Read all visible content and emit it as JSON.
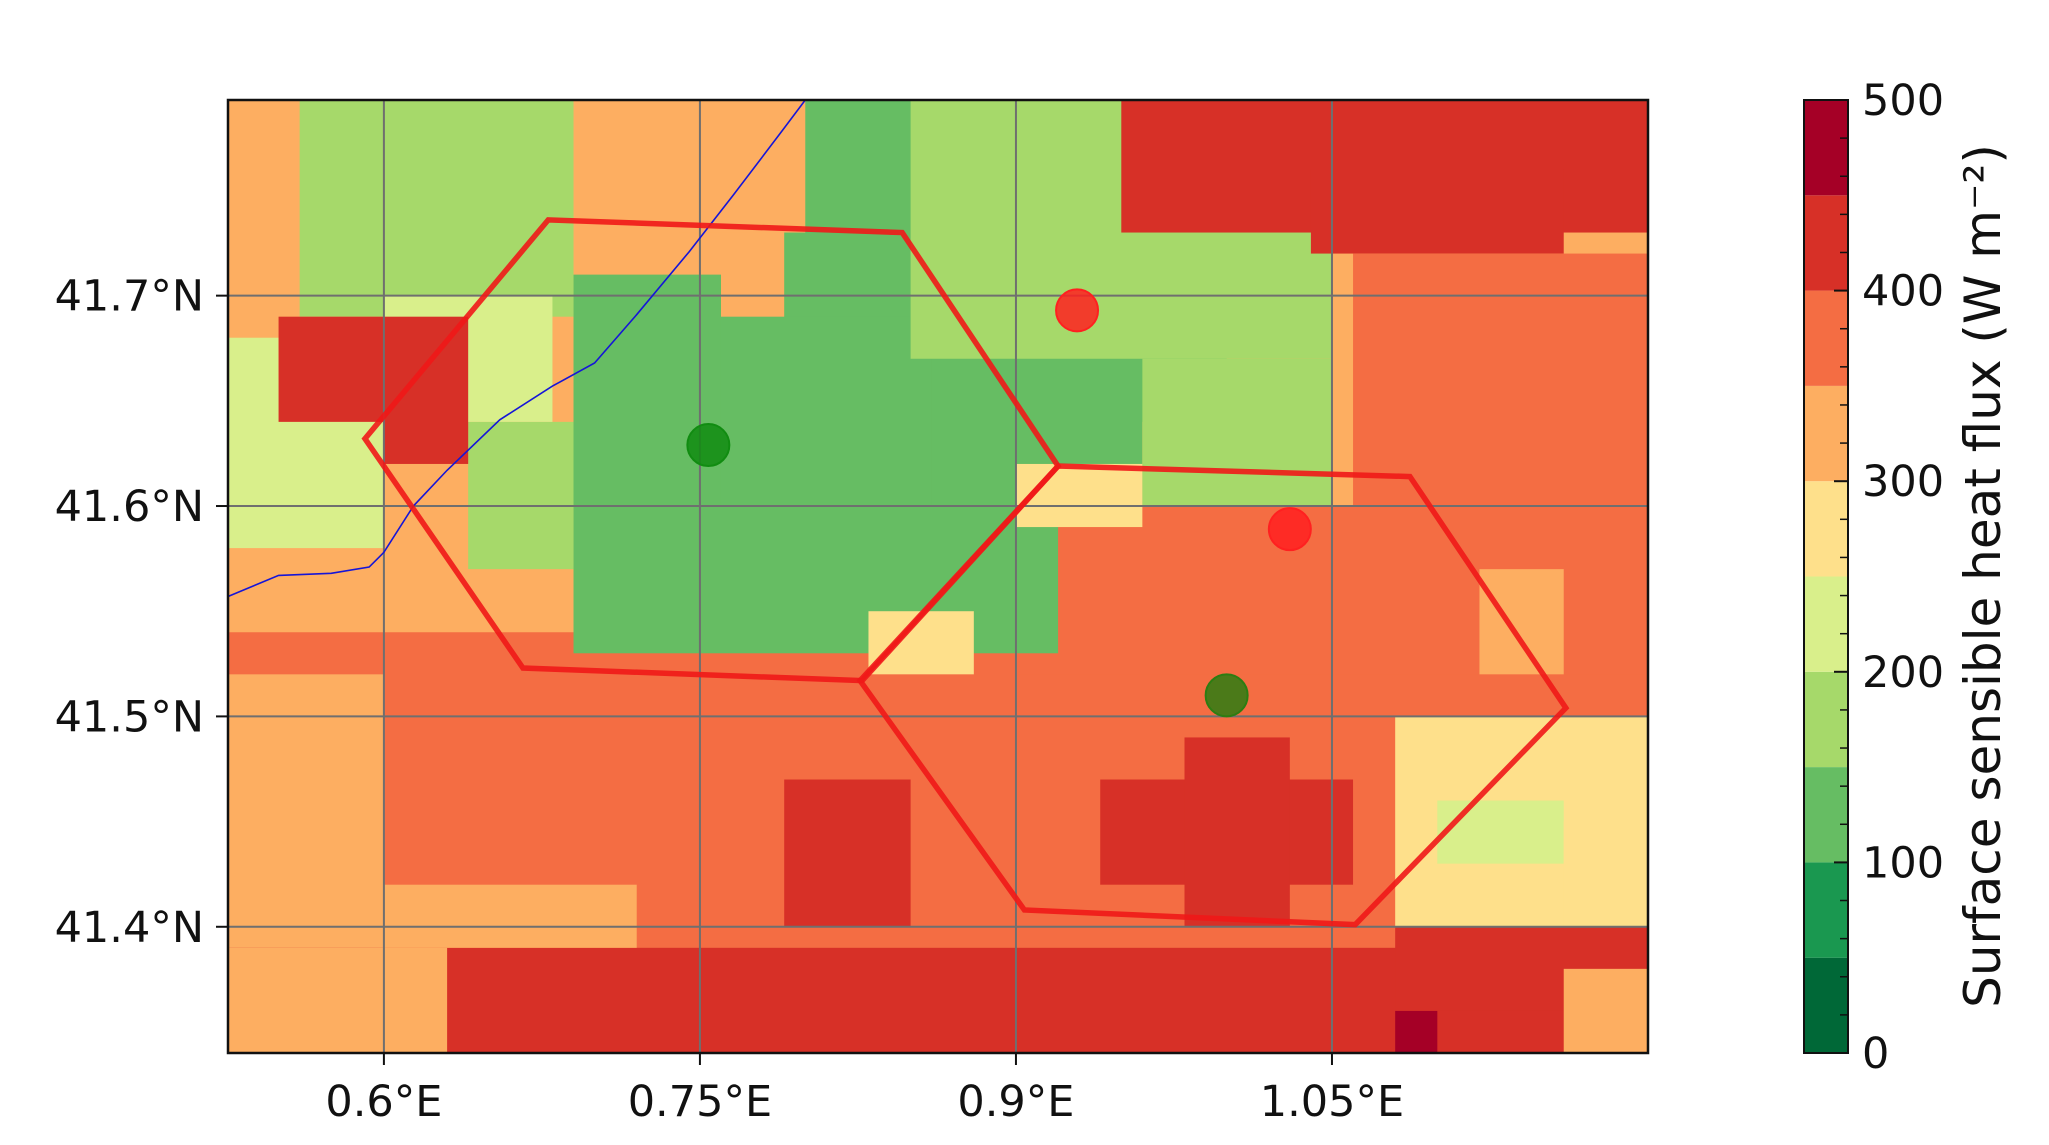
{
  "chart_data": {
    "type": "heatmap",
    "xlabel": "",
    "ylabel": "",
    "x_ticks": [
      0.6,
      0.75,
      0.9,
      1.05
    ],
    "x_tick_labels": [
      "0.6°E",
      "0.75°E",
      "0.9°E",
      "1.05°E"
    ],
    "y_ticks": [
      41.4,
      41.5,
      41.6,
      41.7
    ],
    "y_tick_labels": [
      "41.4°N",
      "41.5°N",
      "41.6°N",
      "41.7°N"
    ],
    "xlim": [
      0.526,
      1.2
    ],
    "ylim": [
      41.34,
      41.793
    ],
    "grid": true,
    "colorbar": {
      "label": "Surface sensible heat flux (W m⁻²)",
      "range": [
        0,
        500
      ],
      "ticks": [
        0,
        100,
        200,
        300,
        400,
        500
      ],
      "levels": [
        {
          "from": 0,
          "to": 50,
          "color": "#006837"
        },
        {
          "from": 50,
          "to": 100,
          "color": "#1a9850"
        },
        {
          "from": 100,
          "to": 150,
          "color": "#66bd63"
        },
        {
          "from": 150,
          "to": 200,
          "color": "#a6d96a"
        },
        {
          "from": 200,
          "to": 250,
          "color": "#d9ef8b"
        },
        {
          "from": 250,
          "to": 300,
          "color": "#fee08b"
        },
        {
          "from": 300,
          "to": 350,
          "color": "#fdae61"
        },
        {
          "from": 350,
          "to": 400,
          "color": "#f46d43"
        },
        {
          "from": 400,
          "to": 450,
          "color": "#d73027"
        },
        {
          "from": 450,
          "to": 500,
          "color": "#a50026"
        }
      ]
    },
    "heat_regions": [
      {
        "x": [
          0.526,
          1.2
        ],
        "y": [
          41.34,
          41.793
        ],
        "value": 330
      },
      {
        "x": [
          0.526,
          1.2
        ],
        "y": [
          41.34,
          41.54
        ],
        "value": 370
      },
      {
        "x": [
          0.526,
          0.6
        ],
        "y": [
          41.34,
          41.52
        ],
        "value": 320
      },
      {
        "x": [
          0.526,
          1.2
        ],
        "y": [
          41.34,
          41.39
        ],
        "value": 420
      },
      {
        "x": [
          0.526,
          0.63
        ],
        "y": [
          41.34,
          41.39
        ],
        "value": 330
      },
      {
        "x": [
          0.6,
          0.72
        ],
        "y": [
          41.39,
          41.42
        ],
        "value": 320
      },
      {
        "x": [
          0.79,
          0.85
        ],
        "y": [
          41.4,
          41.47
        ],
        "value": 420
      },
      {
        "x": [
          0.94,
          1.06
        ],
        "y": [
          41.42,
          41.47
        ],
        "value": 420
      },
      {
        "x": [
          0.98,
          1.03
        ],
        "y": [
          41.4,
          41.49
        ],
        "value": 420
      },
      {
        "x": [
          0.9,
          1.2
        ],
        "y": [
          41.52,
          41.6
        ],
        "value": 370
      },
      {
        "x": [
          1.08,
          1.2
        ],
        "y": [
          41.4,
          41.5
        ],
        "value": 280
      },
      {
        "x": [
          1.1,
          1.16
        ],
        "y": [
          41.43,
          41.46
        ],
        "value": 240
      },
      {
        "x": [
          1.16,
          1.2
        ],
        "y": [
          41.39,
          41.45
        ],
        "value": 270
      },
      {
        "x": [
          0.79,
          0.92
        ],
        "y": [
          41.6,
          41.793
        ],
        "value": 130
      },
      {
        "x": [
          0.69,
          0.92
        ],
        "y": [
          41.53,
          41.69
        ],
        "value": 130
      },
      {
        "x": [
          0.92,
          1.0
        ],
        "y": [
          41.64,
          41.74
        ],
        "value": 130
      },
      {
        "x": [
          0.86,
          0.96
        ],
        "y": [
          41.6,
          41.68
        ],
        "value": 130
      },
      {
        "x": [
          0.64,
          0.69
        ],
        "y": [
          41.57,
          41.64
        ],
        "value": 180
      },
      {
        "x": [
          0.69,
          0.76
        ],
        "y": [
          41.6,
          41.71
        ],
        "value": 140
      },
      {
        "x": [
          0.85,
          1.05
        ],
        "y": [
          41.67,
          41.793
        ],
        "value": 180
      },
      {
        "x": [
          0.96,
          1.05
        ],
        "y": [
          41.6,
          41.67
        ],
        "value": 170
      },
      {
        "x": [
          0.56,
          0.69
        ],
        "y": [
          41.69,
          41.793
        ],
        "value": 180
      },
      {
        "x": [
          0.6,
          0.68
        ],
        "y": [
          41.64,
          41.7
        ],
        "value": 240
      },
      {
        "x": [
          0.9,
          0.96
        ],
        "y": [
          41.59,
          41.62
        ],
        "value": 270
      },
      {
        "x": [
          0.83,
          0.88
        ],
        "y": [
          41.52,
          41.55
        ],
        "value": 250
      },
      {
        "x": [
          0.74,
          0.8
        ],
        "y": [
          41.73,
          41.793
        ],
        "value": 320
      },
      {
        "x": [
          0.526,
          0.55
        ],
        "y": [
          41.6,
          41.68
        ],
        "value": 220
      },
      {
        "x": [
          0.526,
          0.6
        ],
        "y": [
          41.58,
          41.66
        ],
        "value": 200
      },
      {
        "x": [
          0.55,
          0.6
        ],
        "y": [
          41.64,
          41.69
        ],
        "value": 420
      },
      {
        "x": [
          0.6,
          0.64
        ],
        "y": [
          41.62,
          41.69
        ],
        "value": 420
      },
      {
        "x": [
          0.95,
          1.2
        ],
        "y": [
          41.73,
          41.793
        ],
        "value": 420
      },
      {
        "x": [
          1.04,
          1.16
        ],
        "y": [
          41.72,
          41.76
        ],
        "value": 420
      },
      {
        "x": [
          1.06,
          1.2
        ],
        "y": [
          41.6,
          41.72
        ],
        "value": 370
      },
      {
        "x": [
          1.12,
          1.16
        ],
        "y": [
          41.52,
          41.57
        ],
        "value": 330
      },
      {
        "x": [
          1.08,
          1.2
        ],
        "y": [
          41.36,
          41.4
        ],
        "value": 400
      },
      {
        "x": [
          1.08,
          1.1
        ],
        "y": [
          41.34,
          41.36
        ],
        "value": 480
      },
      {
        "x": [
          1.16,
          1.2
        ],
        "y": [
          41.34,
          41.38
        ],
        "value": 300
      }
    ],
    "boundary_line": {
      "x": [
        0.526,
        0.55,
        0.575,
        0.593,
        0.6,
        0.614,
        0.63,
        0.655,
        0.68,
        0.7,
        0.72,
        0.745,
        0.766,
        0.788,
        0.8
      ],
      "y": [
        41.557,
        41.567,
        41.568,
        41.571,
        41.578,
        41.6,
        41.617,
        41.641,
        41.657,
        41.668,
        41.691,
        41.721,
        41.748,
        41.777,
        41.793
      ]
    },
    "hexagons": [
      {
        "x": [
          0.591,
          0.678,
          0.846,
          0.92,
          0.827,
          0.666
        ],
        "y": [
          41.632,
          41.736,
          41.73,
          41.619,
          41.517,
          41.523
        ]
      },
      {
        "x": [
          0.826,
          0.92,
          1.087,
          1.161,
          1.061,
          0.904
        ],
        "y": [
          41.517,
          41.619,
          41.614,
          41.504,
          41.401,
          41.408
        ]
      }
    ],
    "markers": [
      {
        "x": 0.754,
        "y": 41.629,
        "color": "#118c11"
      },
      {
        "x": 0.929,
        "y": 41.693,
        "color": "#ff2020"
      },
      {
        "x": 1.0,
        "y": 41.51,
        "color": "#2d7d12"
      },
      {
        "x": 1.03,
        "y": 41.589,
        "color": "#ff2020"
      }
    ]
  }
}
